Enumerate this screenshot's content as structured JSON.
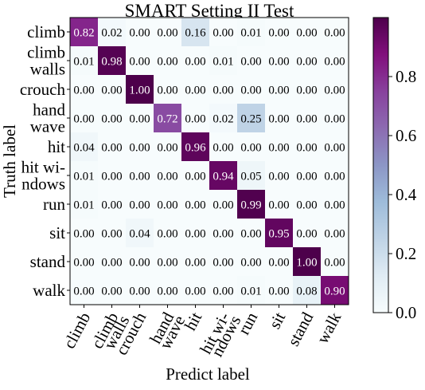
{
  "chart_data": {
    "type": "heatmap",
    "title": "SMART Setting II Test",
    "xlabel": "Predict label",
    "ylabel": "Truth label",
    "y_tick_labels": [
      [
        "climb"
      ],
      [
        "climb",
        "walls"
      ],
      [
        "crouch"
      ],
      [
        "hand",
        "wave"
      ],
      [
        "hit"
      ],
      [
        "hit wi-",
        "ndows"
      ],
      [
        "run"
      ],
      [
        "sit"
      ],
      [
        "stand"
      ],
      [
        "walk"
      ]
    ],
    "x_tick_labels": [
      [
        "climb"
      ],
      [
        "climb",
        "walls"
      ],
      [
        "crouch"
      ],
      [
        "hand",
        "wave"
      ],
      [
        "hit"
      ],
      [
        "hit wi-",
        "ndows"
      ],
      [
        "run"
      ],
      [
        "sit"
      ],
      [
        "stand"
      ],
      [
        "walk"
      ]
    ],
    "matrix": [
      [
        0.82,
        0.02,
        0.0,
        0.0,
        0.16,
        0.0,
        0.01,
        0.0,
        0.0,
        0.0
      ],
      [
        0.01,
        0.98,
        0.0,
        0.0,
        0.0,
        0.01,
        0.0,
        0.0,
        0.0,
        0.0
      ],
      [
        0.0,
        0.0,
        1.0,
        0.0,
        0.0,
        0.0,
        0.0,
        0.0,
        0.0,
        0.0
      ],
      [
        0.0,
        0.0,
        0.0,
        0.72,
        0.0,
        0.02,
        0.25,
        0.0,
        0.0,
        0.0
      ],
      [
        0.04,
        0.0,
        0.0,
        0.0,
        0.96,
        0.0,
        0.0,
        0.0,
        0.0,
        0.0
      ],
      [
        0.01,
        0.0,
        0.0,
        0.0,
        0.0,
        0.94,
        0.05,
        0.0,
        0.0,
        0.0
      ],
      [
        0.01,
        0.0,
        0.0,
        0.0,
        0.0,
        0.0,
        0.99,
        0.0,
        0.0,
        0.0
      ],
      [
        0.0,
        0.0,
        0.04,
        0.0,
        0.0,
        0.0,
        0.0,
        0.95,
        0.0,
        0.0
      ],
      [
        0.0,
        0.0,
        0.0,
        0.0,
        0.0,
        0.0,
        0.0,
        0.0,
        1.0,
        0.0
      ],
      [
        0.0,
        0.0,
        0.0,
        0.0,
        0.0,
        0.0,
        0.01,
        0.0,
        0.08,
        0.9
      ]
    ],
    "value_format": "0.00",
    "colormap": "BuPu",
    "colorbar": {
      "min": 0.0,
      "max": 1.0,
      "ticks": [
        "0.0",
        "0.2",
        "0.4",
        "0.6",
        "0.8"
      ]
    },
    "grid": false
  }
}
